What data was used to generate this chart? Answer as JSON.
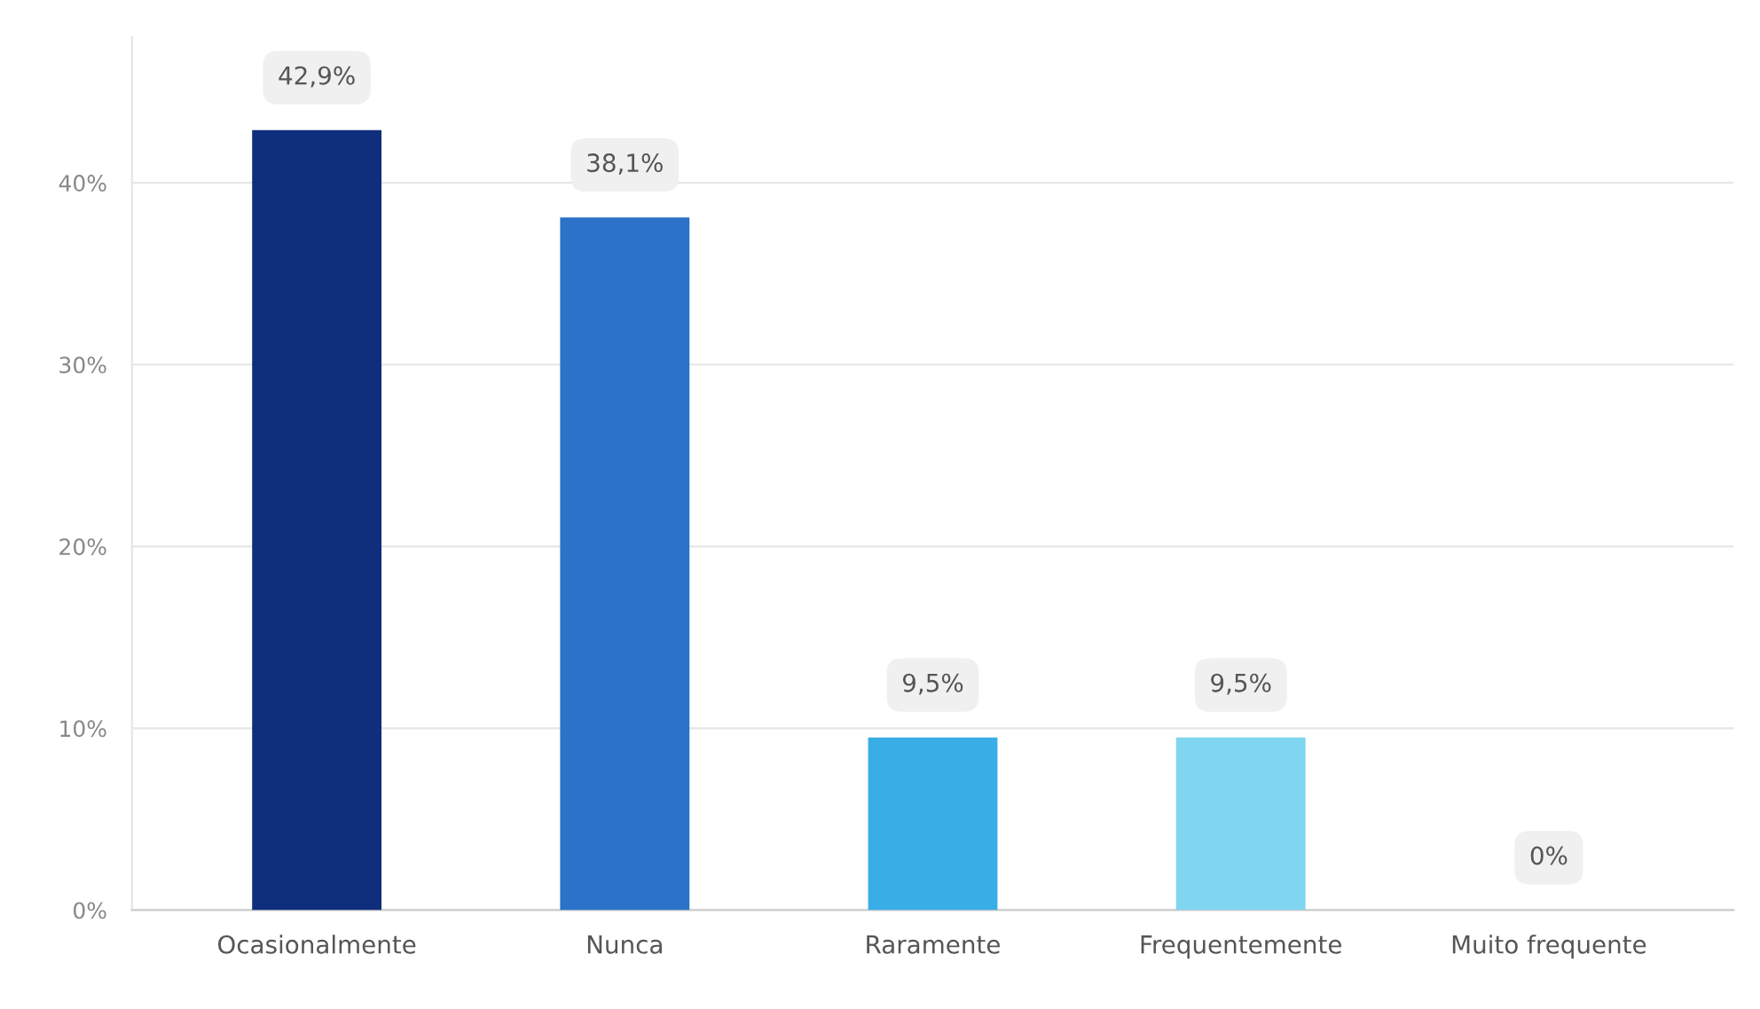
{
  "chart_data": {
    "type": "bar",
    "categories": [
      "Ocasionalmente",
      "Nunca",
      "Raramente",
      "Frequentemente",
      "Muito frequente"
    ],
    "values": [
      42.9,
      38.1,
      9.5,
      9.5,
      0
    ],
    "value_labels": [
      "42,9%",
      "38,1%",
      "9,5%",
      "9,5%",
      "0%"
    ],
    "colors": [
      "#0f2e7b",
      "#2b72c8",
      "#39ade6",
      "#80d5f0",
      "#b5e6f6"
    ],
    "ylim": [
      0,
      48
    ],
    "yticks": [
      {
        "value": 0,
        "label": "0%"
      },
      {
        "value": 10,
        "label": "10%"
      },
      {
        "value": 20,
        "label": "20%"
      },
      {
        "value": 30,
        "label": "30%"
      },
      {
        "value": 40,
        "label": "40%"
      }
    ],
    "grid": "y",
    "legend": false
  }
}
